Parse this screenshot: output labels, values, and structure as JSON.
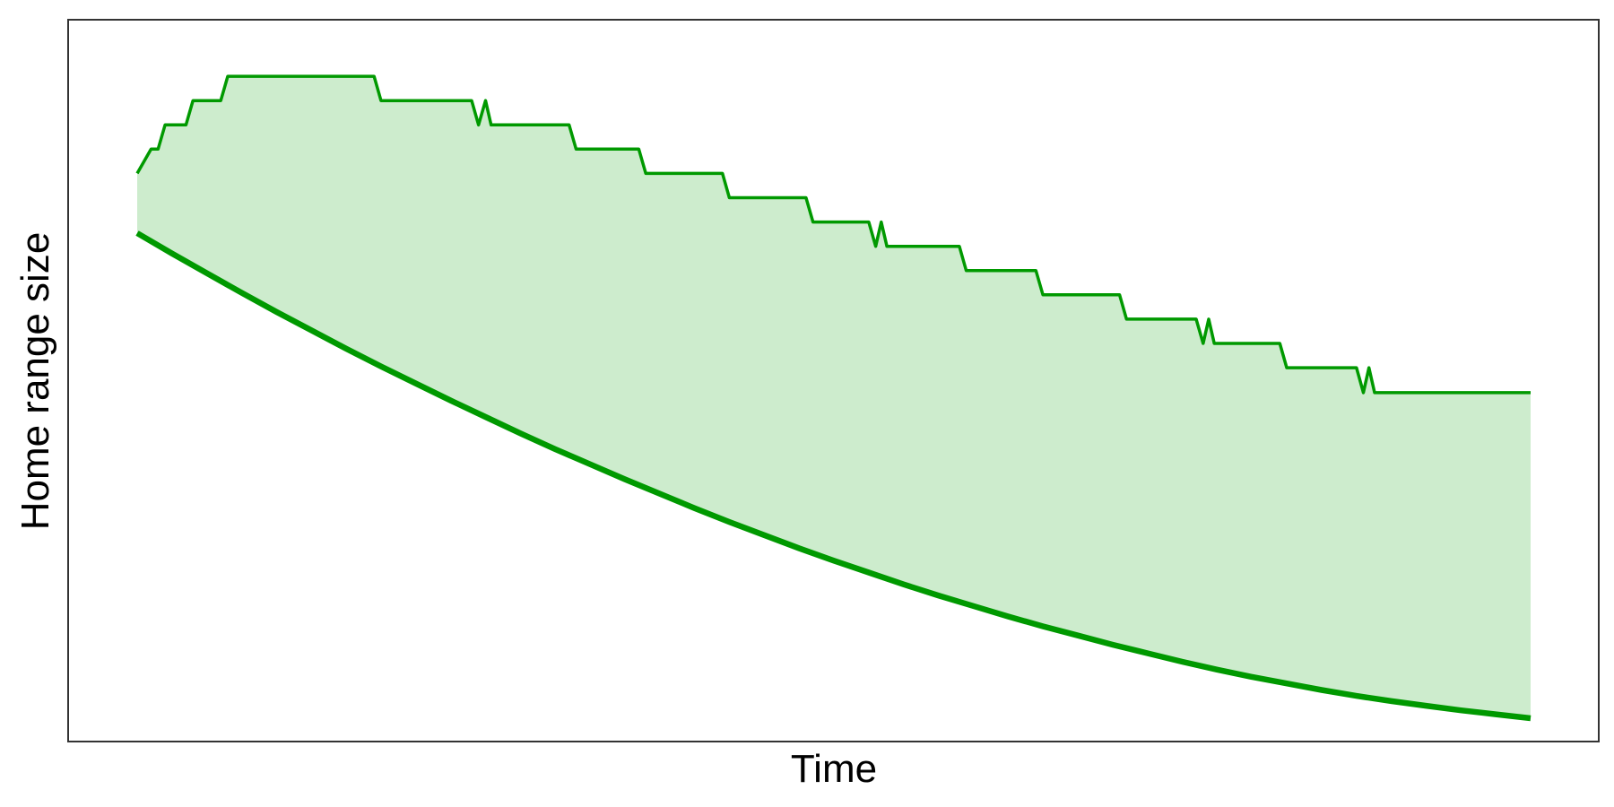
{
  "chart_data": {
    "type": "area",
    "title": "",
    "xlabel": "Time",
    "ylabel": "Home range size",
    "x_ticks_shown": false,
    "y_ticks_shown": false,
    "grid": false,
    "legend": "none",
    "xlim": [
      0,
      100
    ],
    "ylim": [
      0,
      100
    ],
    "colors": {
      "line": "#009900",
      "fill": "#cdeccd",
      "frame": "#333333"
    },
    "band_upper": {
      "x": [
        0,
        1.0,
        1.5,
        2.0,
        3.5,
        4.0,
        6.0,
        6.5,
        7.0,
        17.0,
        17.5,
        24.0,
        24.5,
        25.0,
        25.4,
        25.8,
        31.0,
        31.5,
        36.0,
        36.5,
        42.0,
        42.5,
        48.0,
        48.5,
        52.5,
        53.0,
        53.4,
        53.8,
        59.0,
        59.5,
        64.5,
        65.0,
        70.5,
        71.0,
        76.0,
        76.5,
        76.9,
        77.3,
        82.0,
        82.5,
        87.5,
        88.0,
        88.4,
        88.8,
        100
      ],
      "y": [
        81.5,
        85.2,
        85.2,
        88.9,
        88.9,
        92.6,
        92.6,
        96.3,
        96.3,
        96.3,
        92.6,
        92.6,
        88.9,
        92.6,
        88.9,
        88.9,
        88.9,
        85.2,
        85.2,
        81.5,
        81.5,
        77.8,
        77.8,
        74.1,
        74.1,
        70.4,
        74.1,
        70.4,
        70.4,
        66.7,
        66.7,
        63.0,
        63.0,
        59.3,
        59.3,
        55.6,
        59.3,
        55.6,
        55.6,
        51.9,
        51.9,
        48.1,
        51.9,
        48.1,
        48.1
      ]
    },
    "band_lower": {
      "x": [
        0,
        2.5,
        5,
        7.5,
        10,
        12.5,
        15,
        17.5,
        20,
        22.5,
        25,
        27.5,
        30,
        32.5,
        35,
        37.5,
        40,
        42.5,
        45,
        47.5,
        50,
        52.5,
        55,
        57.5,
        60,
        62.5,
        65,
        67.5,
        70,
        72.5,
        75,
        77.5,
        80,
        82.5,
        85,
        87.5,
        90,
        92.5,
        95,
        97.5,
        100
      ],
      "y": [
        72.4,
        69.3,
        66.3,
        63.3,
        60.4,
        57.6,
        54.8,
        52.1,
        49.5,
        46.9,
        44.4,
        41.9,
        39.5,
        37.2,
        34.9,
        32.7,
        30.5,
        28.4,
        26.4,
        24.4,
        22.5,
        20.7,
        18.9,
        17.2,
        15.6,
        14.0,
        12.5,
        11.1,
        9.7,
        8.4,
        7.1,
        5.9,
        4.8,
        3.8,
        2.8,
        1.9,
        1.1,
        0.4,
        -0.3,
        -0.9,
        -1.5
      ]
    }
  }
}
